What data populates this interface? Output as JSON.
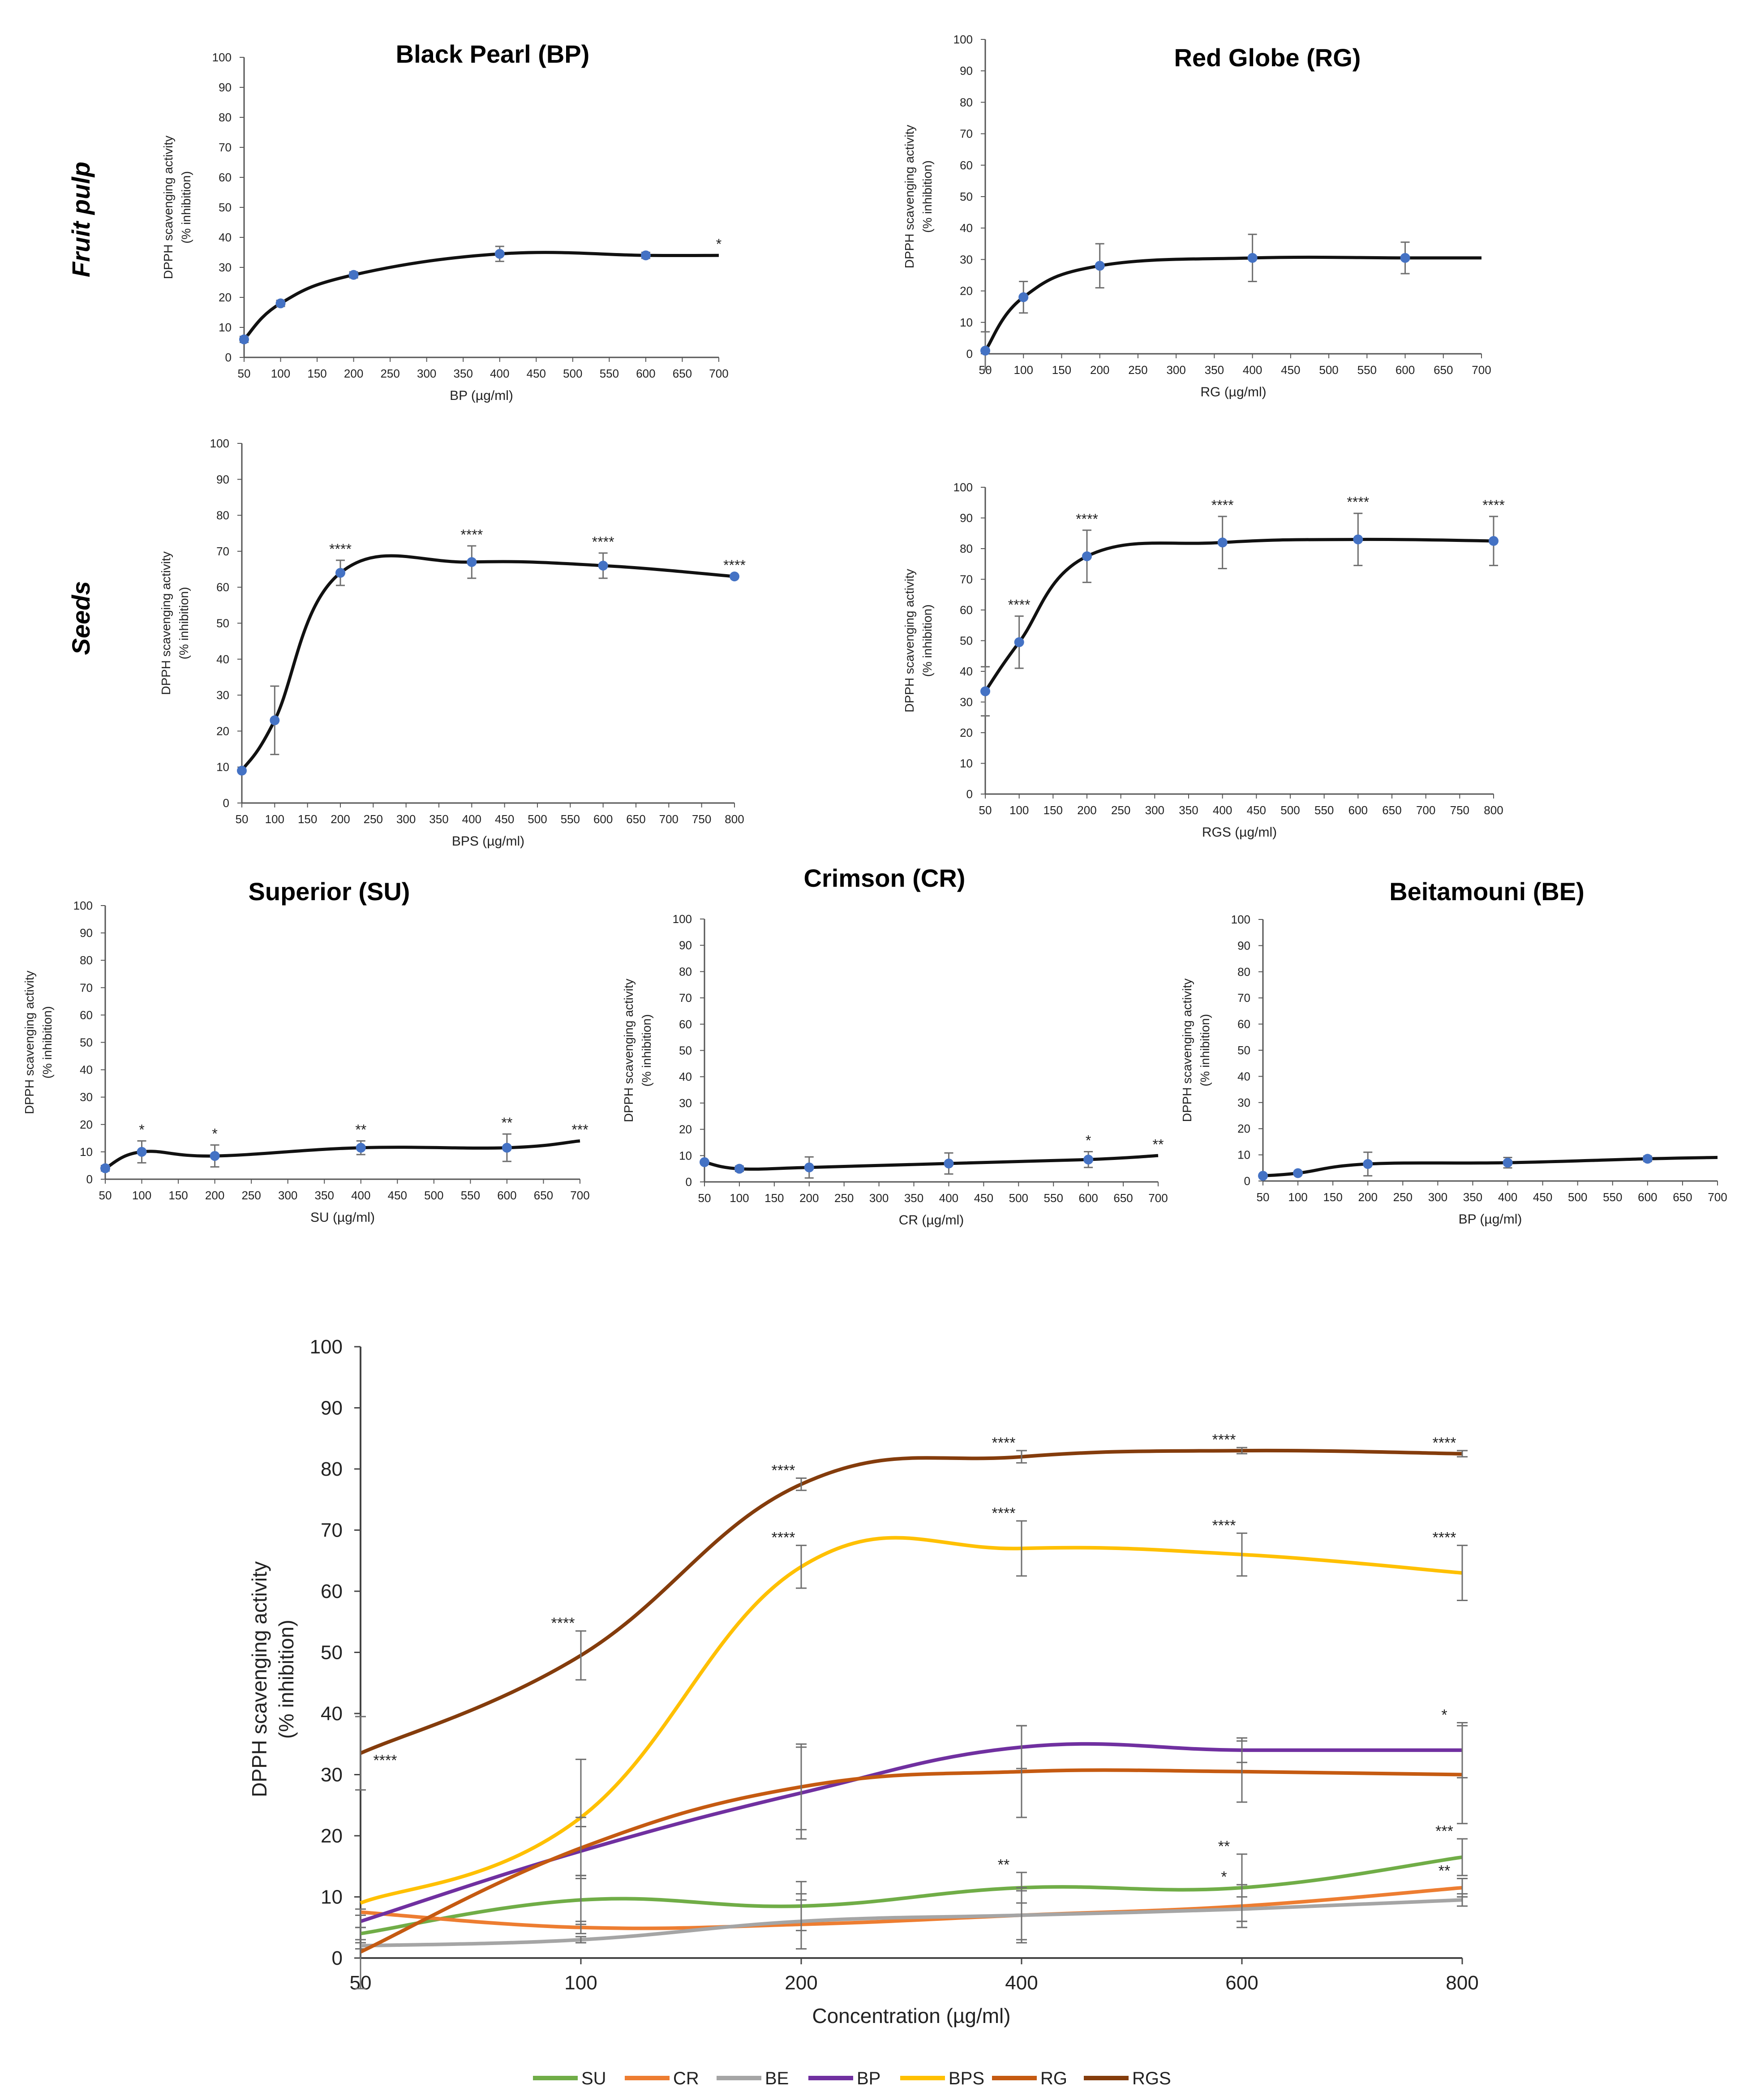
{
  "figure": {
    "row_labels": [
      "Fruit pulp",
      "Seeds"
    ],
    "colors": {
      "SU": "#70ad47",
      "CR": "#ed7d31",
      "BE": "#a5a5a5",
      "BP": "#7030a0",
      "BPS": "#ffc000",
      "RG": "#c55a11",
      "RGS": "#843c0c",
      "marker": "#4472c4",
      "error": "#6f6f6f"
    }
  },
  "chart_data": [
    {
      "type": "line",
      "title": "Black Pearl (BP)",
      "xlabel": "BP (µg/ml)",
      "ylabel": "DPPH scavenging activity",
      "ylabel2": "(% inhibition)",
      "xlim": [
        50,
        700
      ],
      "ylim": [
        0,
        100
      ],
      "xticks": [
        "50",
        "100",
        "150",
        "200",
        "250",
        "300",
        "350",
        "400",
        "450",
        "500",
        "550",
        "600",
        "650",
        "700"
      ],
      "yticks": [
        "0",
        "10",
        "20",
        "30",
        "40",
        "50",
        "60",
        "70",
        "80",
        "90",
        "100"
      ],
      "x": [
        50,
        100,
        200,
        400,
        600,
        700
      ],
      "y": [
        6,
        18,
        27.5,
        34.5,
        34,
        34
      ],
      "error": [
        1,
        1,
        1,
        2.5,
        1,
        0
      ],
      "markers": [
        true,
        true,
        true,
        true,
        true,
        false
      ],
      "annotations": [
        "",
        "",
        "",
        "",
        "",
        "*"
      ]
    },
    {
      "type": "line",
      "title": "Red Globe (RG)",
      "xlabel": "RG (µg/ml)",
      "ylabel": "DPPH scavenging activity",
      "ylabel2": "(% inhibition)",
      "xlim": [
        50,
        700
      ],
      "ylim": [
        0,
        100
      ],
      "xticks": [
        "50",
        "100",
        "150",
        "200",
        "250",
        "300",
        "350",
        "400",
        "450",
        "500",
        "550",
        "600",
        "650",
        "700"
      ],
      "yticks": [
        "0",
        "10",
        "20",
        "30",
        "40",
        "50",
        "60",
        "70",
        "80",
        "90",
        "100"
      ],
      "x": [
        50,
        100,
        200,
        400,
        600,
        700
      ],
      "y": [
        1,
        18,
        28,
        30.5,
        30.5,
        30.5
      ],
      "error": [
        6,
        5,
        7,
        7.5,
        5,
        0
      ],
      "markers": [
        true,
        true,
        true,
        true,
        true,
        false
      ],
      "annotations": [
        "",
        "",
        "",
        "",
        "",
        ""
      ]
    },
    {
      "type": "line",
      "title": "",
      "xlabel": "BPS (µg/ml)",
      "ylabel": "DPPH scavenging activity",
      "ylabel2": "(% inhibition)",
      "xlim": [
        50,
        800
      ],
      "ylim": [
        0,
        100
      ],
      "xticks": [
        "50",
        "100",
        "150",
        "200",
        "250",
        "300",
        "350",
        "400",
        "450",
        "500",
        "550",
        "600",
        "650",
        "700",
        "750",
        "800"
      ],
      "yticks": [
        "0",
        "10",
        "20",
        "30",
        "40",
        "50",
        "60",
        "70",
        "80",
        "90",
        "100"
      ],
      "x": [
        50,
        100,
        200,
        400,
        600,
        800
      ],
      "y": [
        9,
        23,
        64,
        67,
        66,
        63
      ],
      "error": [
        0,
        9.5,
        3.5,
        4.5,
        3.5,
        0
      ],
      "markers": [
        true,
        true,
        true,
        true,
        true,
        true
      ],
      "annotations": [
        "",
        "",
        "****",
        "****",
        "****",
        "****"
      ]
    },
    {
      "type": "line",
      "title": "",
      "xlabel": "RGS (µg/ml)",
      "ylabel": "DPPH scavenging activity",
      "ylabel2": "(% inhibition)",
      "xlim": [
        50,
        800
      ],
      "ylim": [
        0,
        100
      ],
      "xticks": [
        "50",
        "100",
        "150",
        "200",
        "250",
        "300",
        "350",
        "400",
        "450",
        "500",
        "550",
        "600",
        "650",
        "700",
        "750",
        "800"
      ],
      "yticks": [
        "0",
        "10",
        "20",
        "30",
        "40",
        "50",
        "60",
        "70",
        "80",
        "90",
        "100"
      ],
      "x": [
        50,
        100,
        200,
        400,
        600,
        800
      ],
      "y": [
        33.5,
        49.5,
        77.5,
        82,
        83,
        82.5
      ],
      "error": [
        8,
        8.5,
        8.5,
        8.5,
        8.5,
        8
      ],
      "markers": [
        true,
        true,
        true,
        true,
        true,
        true
      ],
      "annotations": [
        "",
        "****",
        "****",
        "****",
        "****",
        "****"
      ]
    },
    {
      "type": "line",
      "title": "Superior (SU)",
      "xlabel": "SU (µg/ml)",
      "ylabel": "DPPH scavenging activity",
      "ylabel2": "(% inhibition)",
      "xlim": [
        50,
        700
      ],
      "ylim": [
        0,
        100
      ],
      "xticks": [
        "50",
        "100",
        "150",
        "200",
        "250",
        "300",
        "350",
        "400",
        "450",
        "500",
        "550",
        "600",
        "650",
        "700"
      ],
      "yticks": [
        "0",
        "10",
        "20",
        "30",
        "40",
        "50",
        "60",
        "70",
        "80",
        "90",
        "100"
      ],
      "x": [
        50,
        100,
        200,
        400,
        600,
        700
      ],
      "y": [
        4,
        10,
        8.5,
        11.5,
        11.5,
        14
      ],
      "error": [
        1,
        4,
        4,
        2.5,
        5,
        0
      ],
      "markers": [
        true,
        true,
        true,
        true,
        true,
        false
      ],
      "annotations": [
        "",
        "*",
        "*",
        "**",
        "**",
        "***"
      ]
    },
    {
      "type": "line",
      "title": "Crimson (CR)",
      "xlabel": "CR (µg/ml)",
      "ylabel": "DPPH scavenging activity",
      "ylabel2": "(% inhibition)",
      "xlim": [
        50,
        700
      ],
      "ylim": [
        0,
        100
      ],
      "xticks": [
        "50",
        "100",
        "150",
        "200",
        "250",
        "300",
        "350",
        "400",
        "450",
        "500",
        "550",
        "600",
        "650",
        "700"
      ],
      "yticks": [
        "0",
        "10",
        "20",
        "30",
        "40",
        "50",
        "60",
        "70",
        "80",
        "90",
        "100"
      ],
      "x": [
        50,
        100,
        200,
        400,
        600,
        700
      ],
      "y": [
        7.5,
        5,
        5.5,
        7,
        8.5,
        10
      ],
      "error": [
        0.5,
        1,
        4,
        4,
        3,
        0
      ],
      "markers": [
        true,
        true,
        true,
        true,
        true,
        false
      ],
      "annotations": [
        "",
        "",
        "",
        "",
        "*",
        "**"
      ]
    },
    {
      "type": "line",
      "title": "Beitamouni (BE)",
      "xlabel": "BP (µg/ml)",
      "ylabel": "DPPH scavenging activity",
      "ylabel2": "(% inhibition)",
      "xlim": [
        50,
        700
      ],
      "ylim": [
        0,
        100
      ],
      "xticks": [
        "50",
        "100",
        "150",
        "200",
        "250",
        "300",
        "350",
        "400",
        "450",
        "500",
        "550",
        "600",
        "650",
        "700"
      ],
      "yticks": [
        "0",
        "10",
        "20",
        "30",
        "40",
        "50",
        "60",
        "70",
        "80",
        "90",
        "100"
      ],
      "x": [
        50,
        100,
        200,
        400,
        600,
        700
      ],
      "y": [
        2,
        3,
        6.5,
        7,
        8.5,
        9
      ],
      "error": [
        0.5,
        0.5,
        4.5,
        2,
        1,
        0
      ],
      "markers": [
        true,
        true,
        true,
        true,
        true,
        false
      ],
      "annotations": [
        "",
        "",
        "",
        "",
        "",
        ""
      ]
    },
    {
      "type": "line",
      "title": "",
      "xlabel": "Concentration  (µg/ml)",
      "ylabel": "DPPH scavenging activity",
      "ylabel2": "(% inhibition)",
      "categories": [
        "50",
        "100",
        "200",
        "400",
        "600",
        "800"
      ],
      "ylim": [
        0,
        100
      ],
      "yticks": [
        "0",
        "10",
        "20",
        "30",
        "40",
        "50",
        "60",
        "70",
        "80",
        "90",
        "100"
      ],
      "series": [
        {
          "name": "SU",
          "values": [
            4,
            9.5,
            8.5,
            11.5,
            11.5,
            16.5
          ],
          "error": [
            1,
            4,
            4,
            2.5,
            5.5,
            3
          ],
          "annotations": [
            "",
            "",
            "",
            "**",
            "**",
            "***"
          ]
        },
        {
          "name": "CR",
          "values": [
            7.5,
            5,
            5.5,
            7,
            8.5,
            11.5
          ],
          "error": [
            0.5,
            1,
            4,
            4,
            3.5,
            1.5
          ],
          "annotations": [
            "",
            "",
            "",
            "",
            "*",
            "**"
          ]
        },
        {
          "name": "BE",
          "values": [
            2,
            3,
            6,
            7,
            8,
            9.5
          ],
          "error": [
            0.5,
            0.5,
            4.5,
            4.5,
            2,
            1
          ],
          "annotations": [
            "",
            "",
            "",
            "",
            "",
            ""
          ]
        },
        {
          "name": "BP",
          "values": [
            6,
            17.5,
            27,
            34.5,
            34,
            34
          ],
          "error": [
            1,
            4,
            7.5,
            3.5,
            2,
            4.5
          ],
          "annotations": [
            "",
            "",
            "",
            "",
            "",
            "*"
          ]
        },
        {
          "name": "BPS",
          "values": [
            9,
            23,
            64,
            67,
            66,
            63
          ],
          "error": [
            0,
            9.5,
            3.5,
            4.5,
            3.5,
            4.5
          ],
          "annotations": [
            "",
            "",
            "****",
            "****",
            "****",
            "****"
          ]
        },
        {
          "name": "RG",
          "values": [
            1,
            18,
            28,
            30.5,
            30.5,
            30
          ],
          "error": [
            6,
            5,
            7,
            7.5,
            5,
            8
          ],
          "annotations": [
            "",
            "",
            "",
            "",
            "",
            ""
          ]
        },
        {
          "name": "RGS",
          "values": [
            33.5,
            49.5,
            77.5,
            82,
            83,
            82.5
          ],
          "error": [
            6,
            4,
            1,
            1,
            0.5,
            0.5
          ],
          "annotations": [
            "****",
            "****",
            "****",
            "****",
            "****",
            "****"
          ]
        }
      ],
      "legend": [
        "SU",
        "CR",
        "BE",
        "BP",
        "BPS",
        "RG",
        "RGS"
      ],
      "legend_position": "bottom"
    }
  ]
}
